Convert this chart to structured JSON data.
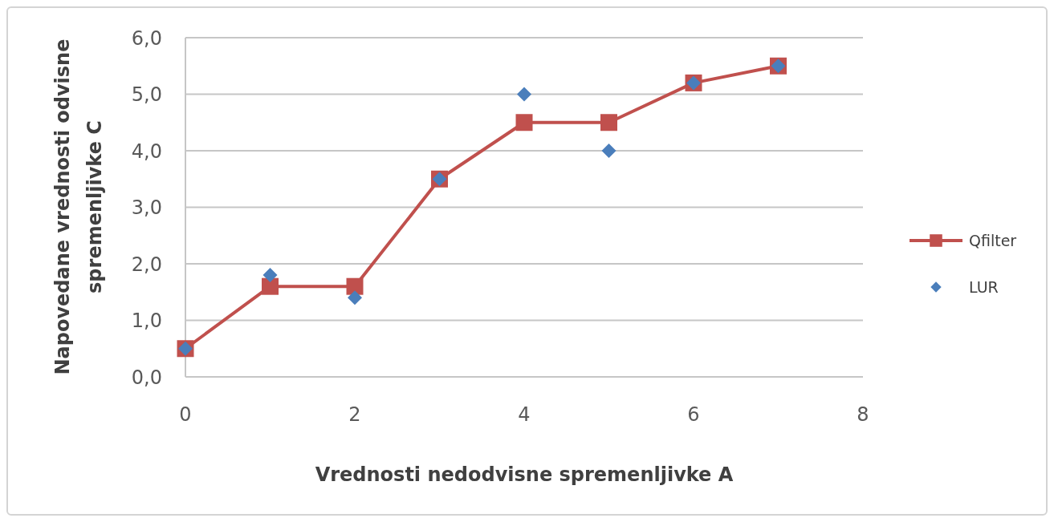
{
  "chart_data": {
    "type": "line",
    "xlabel": "Vrednosti nedodvisne spremenljivke A",
    "ylabel": "Napovedane vrednosti odvisne spremenljivke C",
    "x": [
      0,
      1,
      2,
      3,
      4,
      5,
      6,
      7
    ],
    "series": [
      {
        "name": "Qfilter",
        "color": "#c0504d",
        "marker": "square",
        "line_style": "solid",
        "values": [
          0.5,
          1.6,
          1.6,
          3.5,
          4.5,
          4.5,
          5.2,
          5.5
        ]
      },
      {
        "name": "LUR",
        "type": "scatter",
        "color": "#4a7ebb",
        "marker": "diamond",
        "values": [
          0.5,
          1.8,
          1.4,
          3.5,
          5.0,
          4.0,
          5.2,
          5.5
        ]
      }
    ],
    "xlim": [
      0,
      8
    ],
    "xticks": [
      0,
      2,
      4,
      6,
      8
    ],
    "ylim": [
      0,
      6
    ],
    "yticks": [
      {
        "value": 0,
        "label": "0,0"
      },
      {
        "value": 1,
        "label": "1,0"
      },
      {
        "value": 2,
        "label": "2,0"
      },
      {
        "value": 3,
        "label": "3,0"
      },
      {
        "value": 4,
        "label": "4,0"
      },
      {
        "value": 5,
        "label": "5,0"
      },
      {
        "value": 6,
        "label": "6,0"
      }
    ],
    "grid": "y",
    "legend": "right"
  }
}
